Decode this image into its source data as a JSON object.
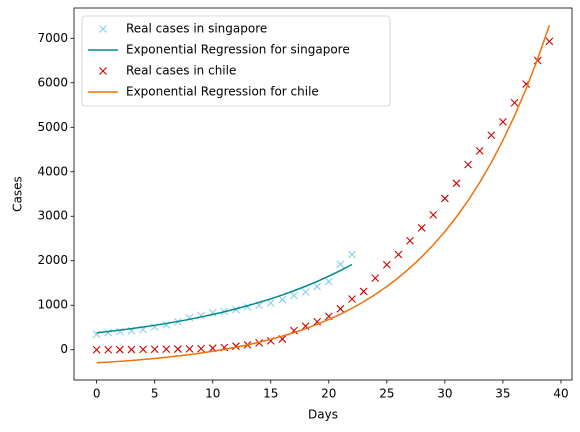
{
  "chart_data": {
    "type": "line",
    "xlabel": "Days",
    "ylabel": "Cases",
    "xlim": [
      -1.95,
      40.95
    ],
    "ylim": [
      -680,
      7680
    ],
    "xticks": [
      0,
      5,
      10,
      15,
      20,
      25,
      30,
      35,
      40
    ],
    "yticks": [
      0,
      1000,
      2000,
      3000,
      4000,
      5000,
      6000,
      7000
    ],
    "legend": "upper left",
    "series": [
      {
        "name": "Real cases in singapore",
        "type": "scatter",
        "marker": "x",
        "color": "#87ceeb",
        "x": [
          0,
          1,
          2,
          3,
          4,
          5,
          6,
          7,
          8,
          9,
          10,
          11,
          12,
          13,
          14,
          15,
          16,
          17,
          18,
          19,
          20,
          21,
          22
        ],
        "values": [
          345,
          385,
          410,
          430,
          455,
          510,
          560,
          630,
          720,
          770,
          830,
          860,
          900,
          960,
          1000,
          1050,
          1130,
          1220,
          1300,
          1420,
          1530,
          1920,
          2140
        ]
      },
      {
        "name": "Exponential Regression for singapore",
        "type": "line",
        "color": "#008b8b",
        "x": [
          0,
          1,
          2,
          3,
          4,
          5,
          6,
          7,
          8,
          9,
          10,
          11,
          12,
          13,
          14,
          15,
          16,
          17,
          18,
          19,
          20,
          21,
          22
        ],
        "values": [
          380,
          409,
          440,
          474,
          510,
          549,
          591,
          636,
          684,
          737,
          793,
          853,
          918,
          988,
          1064,
          1145,
          1232,
          1326,
          1427,
          1536,
          1654,
          1780,
          1916
        ]
      },
      {
        "name": "Real cases in chile",
        "type": "scatter",
        "marker": "x",
        "color": "#d00000",
        "x": [
          0,
          1,
          2,
          3,
          4,
          5,
          6,
          7,
          8,
          9,
          10,
          11,
          12,
          13,
          14,
          15,
          16,
          17,
          18,
          19,
          20,
          21,
          22,
          23,
          24,
          25,
          26,
          27,
          28,
          29,
          30,
          31,
          32,
          33,
          34,
          35,
          36,
          37,
          38,
          39
        ],
        "values": [
          0,
          0,
          1,
          4,
          8,
          10,
          13,
          15,
          20,
          25,
          35,
          50,
          80,
          110,
          155,
          200,
          240,
          430,
          530,
          630,
          750,
          920,
          1140,
          1310,
          1610,
          1910,
          2140,
          2450,
          2740,
          3030,
          3400,
          3740,
          4160,
          4470,
          4820,
          5120,
          5550,
          5970,
          6500,
          6930
        ]
      },
      {
        "name": "Exponential Regression for chile",
        "type": "line",
        "color": "#f0700a",
        "x": [
          0,
          1,
          2,
          3,
          4,
          5,
          6,
          7,
          8,
          9,
          10,
          11,
          12,
          13,
          14,
          15,
          16,
          17,
          18,
          19,
          20,
          21,
          22,
          23,
          24,
          25,
          26,
          27,
          28,
          29,
          30,
          31,
          32,
          33,
          34,
          35,
          36,
          37,
          38,
          39
        ],
        "values": [
          -293,
          -277,
          -260,
          -241,
          -220,
          -196,
          -170,
          -141,
          -109,
          -74,
          -35,
          9,
          57,
          110,
          169,
          234,
          306,
          385,
          474,
          572,
          680,
          800,
          932,
          1079,
          1242,
          1422,
          1621,
          1841,
          2086,
          2356,
          2655,
          2986,
          3353,
          3759,
          4208,
          4706,
          5256,
          5866,
          6541,
          7289
        ]
      }
    ]
  }
}
